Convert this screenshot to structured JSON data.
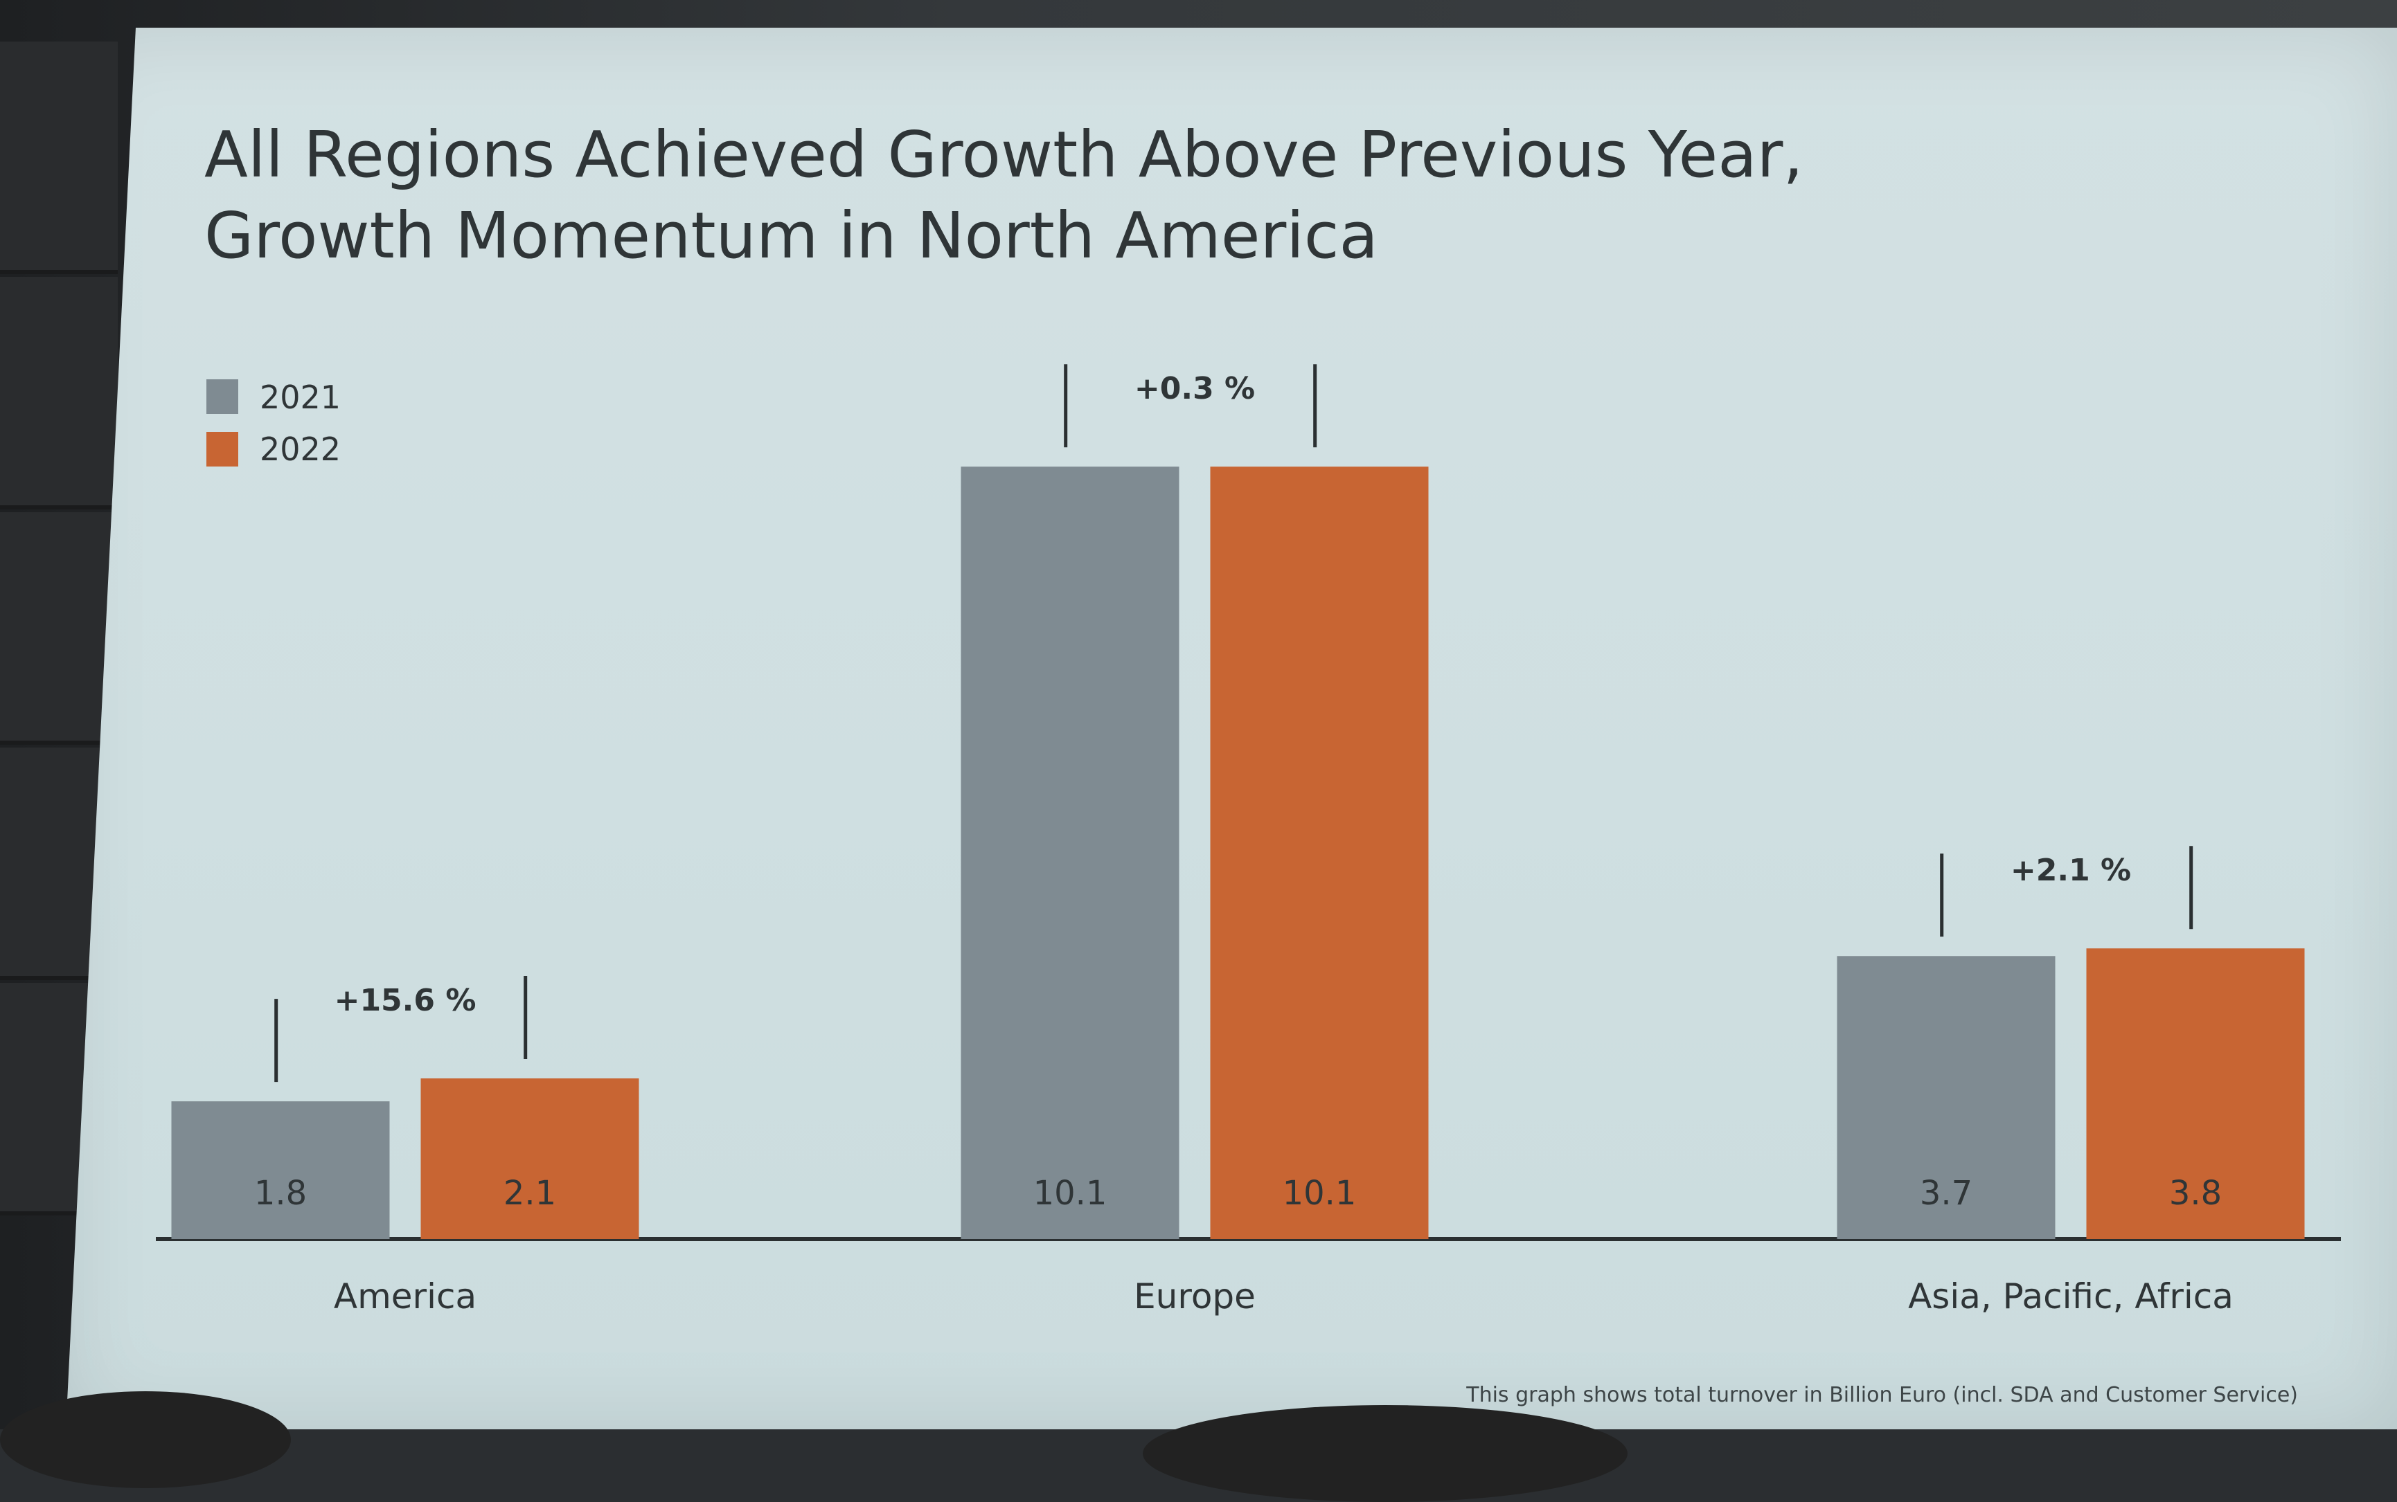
{
  "title": {
    "line1": "All Regions Achieved Growth Above Previous Year,",
    "line2": "Growth Momentum in North America"
  },
  "colors": {
    "series_2021": "#7f8b92",
    "series_2022": "#c86533",
    "text": "#2f3537",
    "axis": "#2a2f31"
  },
  "footnote": "This graph shows total turnover in Billion Euro (incl. SDA and Customer Service)",
  "chart_data": {
    "type": "bar",
    "title": "All Regions Achieved Growth Above Previous Year, Growth Momentum in North America",
    "categories": [
      "America",
      "Europe",
      "Asia, Pacific, Africa"
    ],
    "series": [
      {
        "name": "2021",
        "values": [
          1.8,
          10.1,
          3.7
        ],
        "labels": [
          "1.8",
          "10.1",
          "3.7"
        ]
      },
      {
        "name": "2022",
        "values": [
          2.1,
          10.1,
          3.8
        ],
        "labels": [
          "2.1",
          "10.1",
          "3.8"
        ]
      }
    ],
    "growth_annotations": [
      "+15.6 %",
      "+0.3 %",
      "+2.1 %"
    ],
    "legend_position": "top-left",
    "ylim": [
      0,
      10.5
    ],
    "grid": false,
    "y_axis_shown": false
  }
}
